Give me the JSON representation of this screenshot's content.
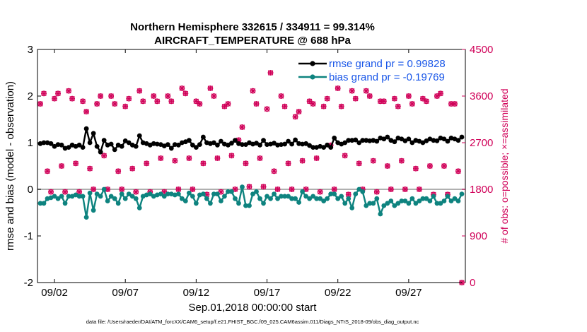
{
  "chart_data": {
    "type": "line",
    "title": "Northern Hemisphere 332615 / 334911 = 99.314%",
    "subtitle": "AIRCRAFT_TEMPERATURE @ 688 hPa",
    "xlabel": "Sep.01,2018 00:00:00 start",
    "ylabel": "rmse and bias (model - observation)",
    "y2label": "# of obs: o=possible; ×=assimilated",
    "footer": "data file: /Users/raeder/DAI/ATM_forcXX/CAM6_setup/f.e21.FHIST_BGC.f09_025.CAM6assim.011/Diags_NTrS_2018-09/obs_diag_output.nc",
    "xlim": [
      0.8,
      31.0
    ],
    "ylim": [
      -2,
      3
    ],
    "y2lim": [
      0,
      4500
    ],
    "xtick_values": [
      2,
      7,
      12,
      17,
      22,
      27
    ],
    "xtick_labels": [
      "09/02",
      "09/07",
      "09/12",
      "09/17",
      "09/22",
      "09/27"
    ],
    "ytick_labels": [
      "-2",
      "-1",
      "0",
      "1",
      "2",
      "3"
    ],
    "y2tick_labels": [
      "0",
      "900",
      "1800",
      "2700",
      "3600",
      "4500"
    ],
    "zero_line": 0,
    "x": [
      1.0,
      1.25,
      1.5,
      1.75,
      2.0,
      2.25,
      2.5,
      2.75,
      3.0,
      3.25,
      3.5,
      3.75,
      4.0,
      4.25,
      4.5,
      4.75,
      5.0,
      5.25,
      5.5,
      5.75,
      6.0,
      6.25,
      6.5,
      6.75,
      7.0,
      7.25,
      7.5,
      7.75,
      8.0,
      8.25,
      8.5,
      8.75,
      9.0,
      9.25,
      9.5,
      9.75,
      10.0,
      10.25,
      10.5,
      10.75,
      11.0,
      11.25,
      11.5,
      11.75,
      12.0,
      12.25,
      12.5,
      12.75,
      13.0,
      13.25,
      13.5,
      13.75,
      14.0,
      14.25,
      14.5,
      14.75,
      15.0,
      15.25,
      15.5,
      15.75,
      16.0,
      16.25,
      16.5,
      16.75,
      17.0,
      17.25,
      17.5,
      17.75,
      18.0,
      18.25,
      18.5,
      18.75,
      19.0,
      19.25,
      19.5,
      19.75,
      20.0,
      20.25,
      20.5,
      20.75,
      21.0,
      21.25,
      21.5,
      21.75,
      22.0,
      22.25,
      22.5,
      22.75,
      23.0,
      23.25,
      23.5,
      23.75,
      24.0,
      24.25,
      24.5,
      24.75,
      25.0,
      25.25,
      25.5,
      25.75,
      26.0,
      26.25,
      26.5,
      26.75,
      27.0,
      27.25,
      27.5,
      27.75,
      28.0,
      28.25,
      28.5,
      28.75,
      29.0,
      29.25,
      29.5,
      29.75,
      30.0,
      30.25,
      30.5,
      30.75
    ],
    "series": [
      {
        "name": "rmse grand",
        "legend": "rmse grand pr = 0.99828",
        "color": "#000000",
        "values": [
          0.98,
          1.0,
          1.0,
          0.98,
          0.92,
          0.96,
          0.95,
          0.88,
          0.9,
          0.95,
          0.92,
          0.95,
          0.9,
          1.3,
          1.0,
          1.2,
          0.92,
          0.8,
          1.05,
          0.95,
          0.97,
          0.85,
          0.95,
          0.92,
          1.04,
          1.0,
          0.95,
          0.92,
          1.15,
          1.0,
          0.98,
          0.95,
          0.98,
          0.97,
          0.96,
          0.93,
          0.96,
          0.88,
          0.96,
          0.95,
          1.0,
          1.02,
          1.05,
          0.95,
          0.9,
          0.96,
          1.12,
          1.0,
          0.98,
          1.0,
          0.95,
          1.03,
          0.97,
          0.95,
          0.99,
          1.05,
          0.98,
          0.96,
          0.96,
          1.0,
          0.97,
          0.99,
          0.95,
          1.05,
          0.96,
          0.97,
          0.99,
          0.95,
          0.96,
          0.97,
          1.03,
          0.97,
          1.06,
          0.98,
          0.97,
          0.98,
          0.94,
          0.9,
          0.9,
          0.92,
          0.9,
          0.95,
          0.9,
          1.1,
          1.0,
          0.97,
          1.0,
          1.05,
          1.05,
          1.06,
          1.0,
          1.05,
          1.05,
          1.04,
          1.05,
          1.03,
          1.1,
          1.08,
          1.12,
          1.05,
          1.02,
          1.1,
          1.08,
          1.04,
          1.08,
          1.0,
          1.05,
          1.03,
          1.0,
          1.04,
          1.08,
          1.05,
          1.04,
          1.1,
          1.08,
          1.03,
          1.1,
          1.08,
          1.05,
          1.12
        ]
      },
      {
        "name": "bias grand",
        "legend": "bias grand pr = -0.19769",
        "color": "#0e837f",
        "values": [
          -0.3,
          -0.3,
          -0.2,
          -0.18,
          -0.15,
          -0.2,
          -0.15,
          -0.3,
          -0.15,
          -0.15,
          -0.12,
          -0.15,
          -0.15,
          -0.6,
          -0.08,
          -0.45,
          -0.1,
          -0.15,
          0.0,
          -0.25,
          -0.15,
          -0.2,
          -0.3,
          -0.1,
          -0.2,
          -0.1,
          -0.15,
          -0.2,
          -0.4,
          -0.15,
          -0.12,
          -0.1,
          -0.15,
          -0.12,
          -0.1,
          -0.15,
          -0.1,
          -0.1,
          -0.12,
          -0.1,
          -0.2,
          -0.25,
          -0.08,
          -0.15,
          -0.3,
          -0.12,
          -0.1,
          -0.2,
          -0.3,
          -0.1,
          -0.1,
          -0.25,
          -0.15,
          -0.05,
          -0.05,
          -0.2,
          -0.3,
          0.05,
          -0.35,
          -0.35,
          -0.1,
          -0.05,
          -0.2,
          -0.3,
          -0.15,
          -0.2,
          -0.1,
          -0.2,
          -0.15,
          -0.15,
          -0.15,
          -0.2,
          -0.2,
          -0.28,
          -0.05,
          -0.15,
          -0.2,
          -0.15,
          -0.2,
          -0.2,
          -0.25,
          -0.2,
          -0.1,
          -0.1,
          -0.2,
          -0.15,
          -0.3,
          -0.2,
          -0.4,
          -0.1,
          0.0,
          -0.05,
          -0.35,
          -0.3,
          -0.3,
          -0.2,
          -0.53,
          -0.35,
          -0.3,
          -0.25,
          -0.35,
          -0.3,
          -0.25,
          -0.25,
          -0.3,
          -0.2,
          -0.3,
          -0.25,
          -0.2,
          -0.2,
          -0.25,
          -0.15,
          -0.3,
          -0.3,
          -0.25,
          -0.15,
          -0.25,
          -0.2,
          -0.25,
          -0.1
        ]
      }
    ],
    "obs_series": [
      {
        "name": "possible",
        "marker": "o",
        "color": "#d00058",
        "values": [
          3450,
          3650,
          2150,
          1750,
          3550,
          3650,
          2250,
          1750,
          3700,
          3550,
          2300,
          1750,
          3500,
          3300,
          2200,
          1800,
          3450,
          3600,
          2450,
          1800,
          3600,
          3450,
          2150,
          1800,
          3400,
          3550,
          2200,
          1750,
          3700,
          3500,
          2300,
          1750,
          3600,
          3500,
          2400,
          1750,
          3600,
          3500,
          2350,
          1800,
          3750,
          3650,
          2400,
          1800,
          3500,
          3450,
          2300,
          1700,
          3750,
          3600,
          2400,
          1750,
          3400,
          3450,
          2450,
          1800,
          2750,
          3000,
          2300,
          1850,
          3700,
          3450,
          2400,
          1850,
          3350,
          4050,
          2150,
          1800,
          3600,
          3400,
          2300,
          1800,
          3200,
          3300,
          2350,
          1800,
          3500,
          3450,
          2400,
          1750,
          3400,
          3550,
          2650,
          1800,
          3750,
          3400,
          2450,
          1700,
          3700,
          3550,
          2300,
          1800,
          3700,
          3600,
          2350,
          1750,
          3500,
          3500,
          2250,
          1800,
          3550,
          3400,
          2350,
          1800,
          3600,
          3450,
          2200,
          1800,
          3550,
          3500,
          2250,
          1700,
          3600,
          3650,
          2250,
          1700,
          3450,
          3450,
          2150,
          0
        ]
      },
      {
        "name": "assimilated",
        "marker": "x",
        "color": "#d00058",
        "values": [
          3450,
          3650,
          2150,
          1750,
          3550,
          3650,
          2250,
          1750,
          3700,
          3550,
          2300,
          1750,
          3500,
          3300,
          2200,
          1800,
          3450,
          3600,
          2450,
          1800,
          3600,
          3450,
          2150,
          1800,
          3400,
          3550,
          2200,
          1750,
          3700,
          3500,
          2300,
          1750,
          3600,
          3500,
          2400,
          1750,
          3600,
          3500,
          2350,
          1800,
          3750,
          3650,
          2400,
          1800,
          3500,
          3450,
          2300,
          1700,
          3750,
          3600,
          2400,
          1750,
          3400,
          3450,
          2450,
          1800,
          2750,
          3000,
          2300,
          1850,
          3700,
          3450,
          2400,
          1850,
          3350,
          4050,
          2150,
          1800,
          3600,
          3400,
          2300,
          1800,
          3200,
          3300,
          2350,
          1800,
          3500,
          3450,
          2400,
          1750,
          3400,
          3550,
          2650,
          1800,
          3750,
          3400,
          2450,
          1700,
          3700,
          3550,
          2300,
          1800,
          3700,
          3600,
          2350,
          1750,
          3500,
          3500,
          2250,
          1800,
          3550,
          3400,
          2350,
          1800,
          3600,
          3450,
          2200,
          1800,
          3550,
          3500,
          2250,
          1700,
          3600,
          3650,
          2250,
          1700,
          3450,
          3450,
          2150,
          0
        ]
      }
    ]
  }
}
